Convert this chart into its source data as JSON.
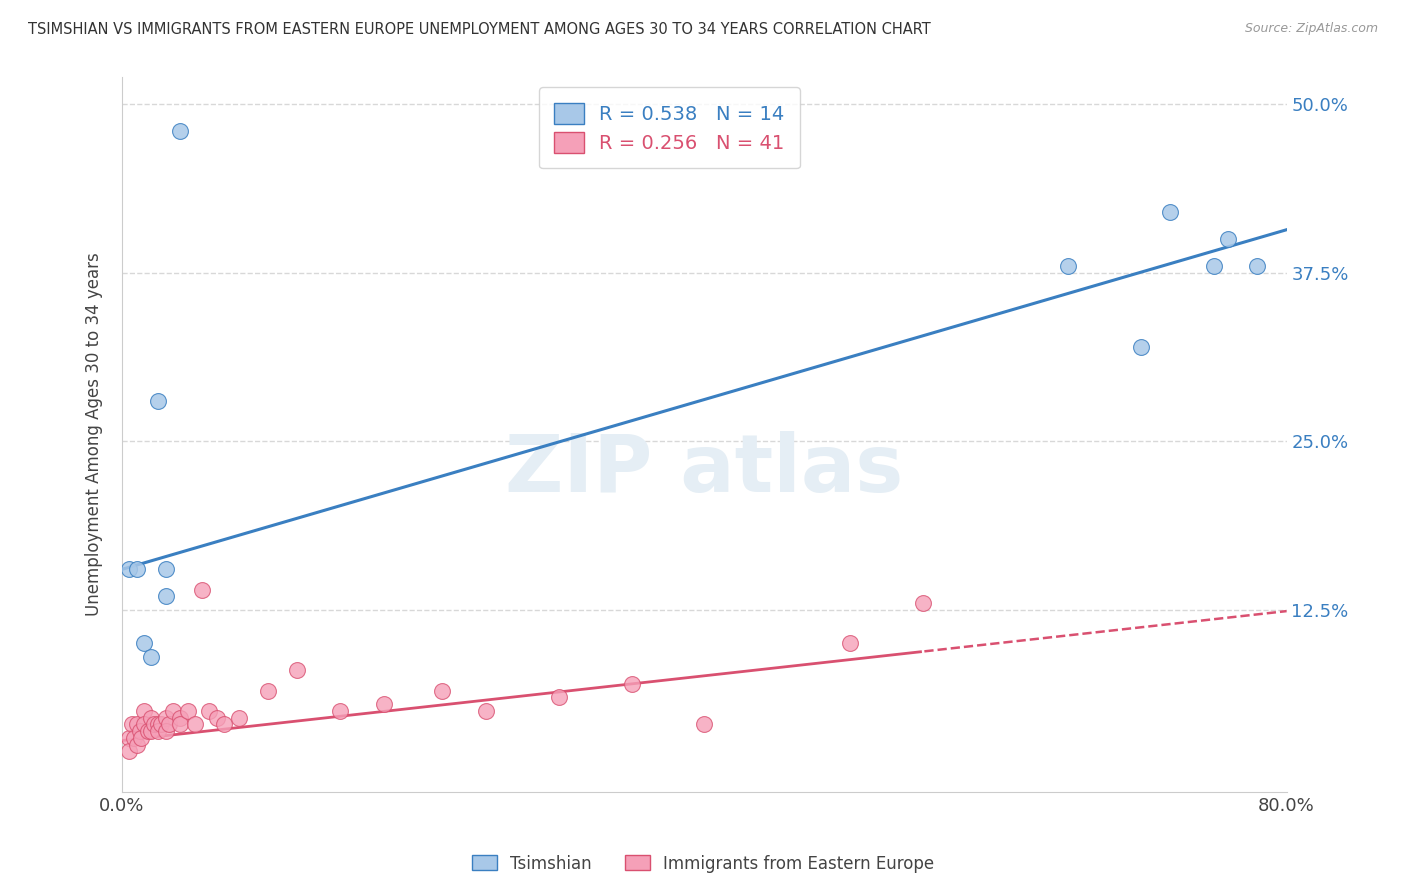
{
  "title": "TSIMSHIAN VS IMMIGRANTS FROM EASTERN EUROPE UNEMPLOYMENT AMONG AGES 30 TO 34 YEARS CORRELATION CHART",
  "source": "Source: ZipAtlas.com",
  "ylabel_label": "Unemployment Among Ages 30 to 34 years",
  "legend_labels": [
    "Tsimshian",
    "Immigrants from Eastern Europe"
  ],
  "r_tsimshian": 0.538,
  "n_tsimshian": 14,
  "r_eastern": 0.256,
  "n_eastern": 41,
  "tsimshian_color": "#a8c8e8",
  "eastern_color": "#f5a0b8",
  "tsimshian_line_color": "#3a7fc1",
  "eastern_line_color": "#d95070",
  "tsimshian_x": [
    0.005,
    0.01,
    0.015,
    0.02,
    0.025,
    0.03,
    0.03,
    0.04,
    0.65,
    0.7,
    0.72,
    0.75,
    0.76,
    0.78
  ],
  "tsimshian_y": [
    0.155,
    0.155,
    0.1,
    0.09,
    0.28,
    0.135,
    0.155,
    0.48,
    0.38,
    0.32,
    0.42,
    0.38,
    0.4,
    0.38
  ],
  "eastern_x": [
    0.005,
    0.005,
    0.007,
    0.008,
    0.01,
    0.01,
    0.012,
    0.013,
    0.015,
    0.015,
    0.018,
    0.02,
    0.02,
    0.022,
    0.025,
    0.025,
    0.027,
    0.03,
    0.03,
    0.032,
    0.035,
    0.04,
    0.04,
    0.045,
    0.05,
    0.055,
    0.06,
    0.065,
    0.07,
    0.08,
    0.1,
    0.12,
    0.15,
    0.18,
    0.22,
    0.25,
    0.3,
    0.35,
    0.4,
    0.5,
    0.55
  ],
  "eastern_y": [
    0.03,
    0.02,
    0.04,
    0.03,
    0.04,
    0.025,
    0.035,
    0.03,
    0.05,
    0.04,
    0.035,
    0.045,
    0.035,
    0.04,
    0.04,
    0.035,
    0.04,
    0.045,
    0.035,
    0.04,
    0.05,
    0.045,
    0.04,
    0.05,
    0.04,
    0.14,
    0.05,
    0.045,
    0.04,
    0.045,
    0.065,
    0.08,
    0.05,
    0.055,
    0.065,
    0.05,
    0.06,
    0.07,
    0.04,
    0.1,
    0.13
  ],
  "tsimshian_line_intercept": 0.155,
  "tsimshian_line_slope": 0.315,
  "eastern_line_intercept": 0.028,
  "eastern_line_slope": 0.12,
  "xmin": 0.0,
  "xmax": 0.8,
  "ymin": -0.01,
  "ymax": 0.52,
  "grid_color": "#d8d8d8",
  "background_color": "#ffffff"
}
